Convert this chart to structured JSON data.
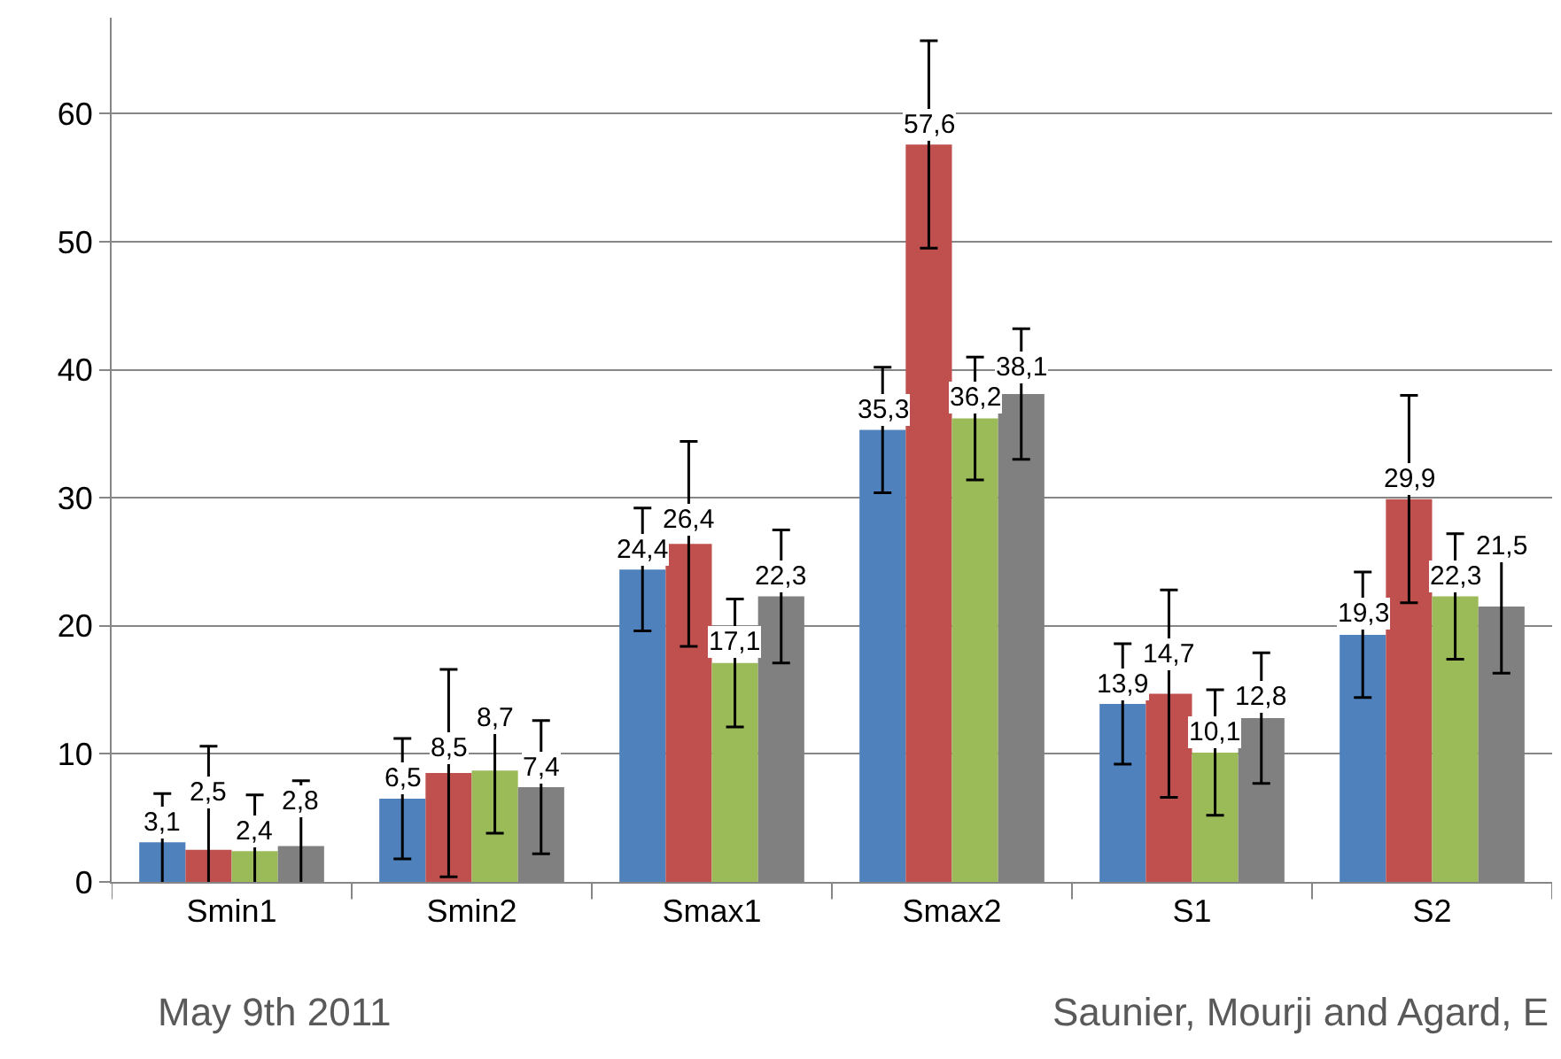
{
  "chart_data": {
    "type": "bar",
    "categories": [
      "Smin1",
      "Smin2",
      "Smax1",
      "Smax2",
      "S1",
      "S2"
    ],
    "series": [
      {
        "color": "#4f81bd",
        "values": [
          3.1,
          6.5,
          24.4,
          35.3,
          13.9,
          19.3
        ],
        "value_labels": [
          "3,1",
          "6,5",
          "24,4",
          "35,3",
          "13,9",
          "19,3"
        ],
        "errors": [
          3.8,
          4.7,
          4.8,
          4.9,
          4.7,
          4.9
        ]
      },
      {
        "color": "#c0504d",
        "values": [
          2.5,
          8.5,
          26.4,
          57.6,
          14.7,
          29.9
        ],
        "value_labels": [
          "2,5",
          "8,5",
          "26,4",
          "57,6",
          "14,7",
          "29,9"
        ],
        "errors": [
          8.1,
          8.1,
          8.0,
          8.1,
          8.1,
          8.1
        ]
      },
      {
        "color": "#9bbb59",
        "values": [
          2.4,
          8.7,
          17.1,
          36.2,
          10.1,
          22.3
        ],
        "value_labels": [
          "2,4",
          "8,7",
          "17,1",
          "36,2",
          "10,1",
          "22,3"
        ],
        "errors": [
          4.4,
          4.9,
          5.0,
          4.8,
          4.9,
          4.9
        ]
      },
      {
        "color": "#808080",
        "values": [
          2.8,
          7.4,
          22.3,
          38.1,
          12.8,
          21.5
        ],
        "value_labels": [
          "2,8",
          "7,4",
          "22,3",
          "38,1",
          "12,8",
          "21,5"
        ],
        "errors": [
          5.1,
          5.2,
          5.2,
          5.1,
          5.1,
          5.2
        ]
      }
    ],
    "ylim": [
      0,
      67.5
    ],
    "yticks": [
      0,
      10,
      20,
      30,
      40,
      50,
      60
    ],
    "grid": "y",
    "annotations": [
      "May 9th 2011",
      "Saunier, Mourji and Agard, E"
    ]
  }
}
